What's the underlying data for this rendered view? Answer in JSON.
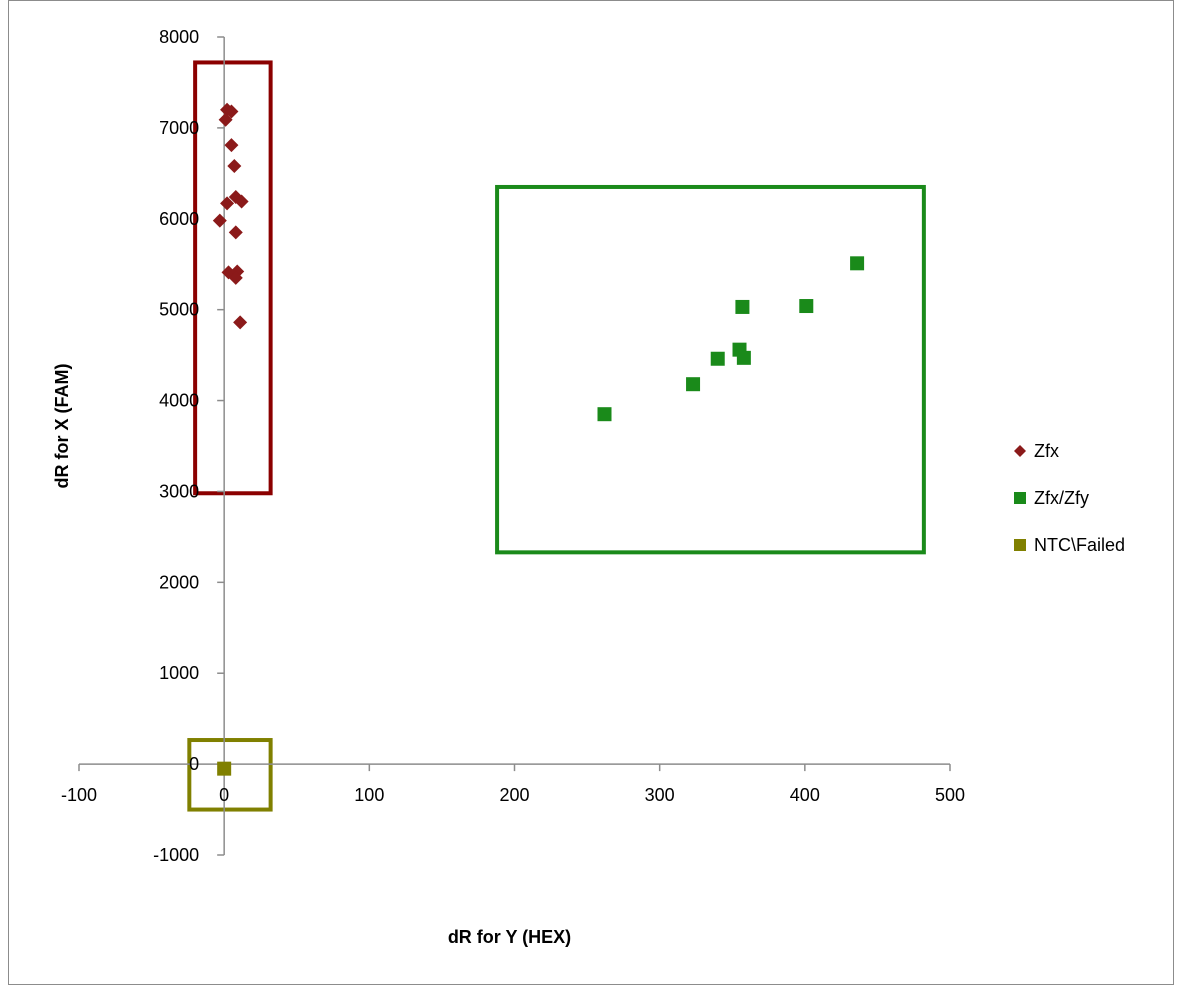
{
  "chart_data": {
    "type": "scatter",
    "xlabel": "dR for Y (HEX)",
    "ylabel": "dR for X (FAM)",
    "xlim": [
      -100,
      500
    ],
    "ylim": [
      -1000,
      8000
    ],
    "xticks": [
      -100,
      0,
      100,
      200,
      300,
      400,
      500
    ],
    "yticks": [
      -1000,
      0,
      1000,
      2000,
      3000,
      4000,
      5000,
      6000,
      7000,
      8000
    ],
    "x_tick_labels": [
      "-100",
      "0",
      "100",
      "200",
      "300",
      "400",
      "500"
    ],
    "y_tick_labels": [
      "-1000",
      "0",
      "1000",
      "2000",
      "3000",
      "4000",
      "5000",
      "6000",
      "7000",
      "8000"
    ],
    "grid": false,
    "legend_position": "right",
    "series": [
      {
        "name": "Zfx",
        "marker": "diamond",
        "color": "#8b1a1a",
        "x": [
          2,
          5,
          1,
          5,
          7,
          8,
          2,
          12,
          -3,
          8,
          3,
          9,
          8,
          11
        ],
        "y": [
          7200,
          7180,
          7090,
          6810,
          6580,
          6240,
          6170,
          6190,
          5980,
          5850,
          5410,
          5420,
          5350,
          4860
        ]
      },
      {
        "name": "Zfx/Zfy",
        "marker": "square",
        "color": "#1a8a1a",
        "x": [
          262,
          323,
          340,
          355,
          358,
          357,
          401,
          436
        ],
        "y": [
          3850,
          4180,
          4460,
          4560,
          4470,
          5030,
          5040,
          5510
        ]
      },
      {
        "name": "NTC\\Failed",
        "marker": "square",
        "color": "#808000",
        "x": [
          0
        ],
        "y": [
          -50
        ]
      }
    ],
    "annotations": [
      {
        "shape": "rectangle",
        "color": "#8b0000",
        "x_range": [
          -20,
          32
        ],
        "y_range": [
          2980,
          7720
        ]
      },
      {
        "shape": "rectangle",
        "color": "#1a8a1a",
        "x_range": [
          188,
          482
        ],
        "y_range": [
          2330,
          6350
        ]
      },
      {
        "shape": "rectangle",
        "color": "#808000",
        "x_range": [
          -24,
          32
        ],
        "y_range": [
          -500,
          265
        ]
      }
    ]
  }
}
